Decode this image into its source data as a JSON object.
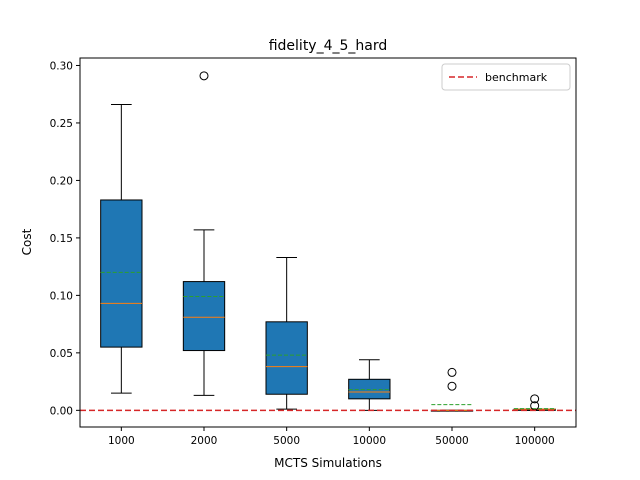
{
  "chart_data": {
    "type": "box",
    "title": "fidelity_4_5_hard",
    "xlabel": "MCTS Simulations",
    "ylabel": "Cost",
    "categories": [
      "1000",
      "2000",
      "5000",
      "10000",
      "50000",
      "100000"
    ],
    "ylim": [
      -0.0145,
      0.3065
    ],
    "yticks": [
      0.0,
      0.05,
      0.1,
      0.15,
      0.2,
      0.25,
      0.3
    ],
    "ytick_labels": [
      "0.00",
      "0.05",
      "0.10",
      "0.15",
      "0.20",
      "0.25",
      "0.30"
    ],
    "grid": false,
    "legend": {
      "position": "top-right",
      "entries": [
        "benchmark"
      ]
    },
    "benchmark": 0.0,
    "boxes": [
      {
        "category": "1000",
        "whisker_low": 0.015,
        "q1": 0.055,
        "median": 0.093,
        "mean": 0.12,
        "q3": 0.183,
        "whisker_high": 0.266,
        "outliers": []
      },
      {
        "category": "2000",
        "whisker_low": 0.013,
        "q1": 0.052,
        "median": 0.081,
        "mean": 0.099,
        "q3": 0.112,
        "whisker_high": 0.157,
        "outliers": [
          0.291
        ]
      },
      {
        "category": "5000",
        "whisker_low": 0.001,
        "q1": 0.014,
        "median": 0.038,
        "mean": 0.048,
        "q3": 0.077,
        "whisker_high": 0.133,
        "outliers": []
      },
      {
        "category": "10000",
        "whisker_low": 0.0,
        "q1": 0.01,
        "median": 0.016,
        "mean": 0.018,
        "q3": 0.027,
        "whisker_high": 0.044,
        "outliers": []
      },
      {
        "category": "50000",
        "whisker_low": 0.0,
        "q1": 0.0,
        "median": 0.0,
        "mean": 0.005,
        "q3": 0.0,
        "whisker_high": 0.0,
        "outliers": [
          0.021,
          0.033
        ]
      },
      {
        "category": "100000",
        "whisker_low": 0.0,
        "q1": 0.0,
        "median": 0.001,
        "mean": 0.0015,
        "q3": 0.001,
        "whisker_high": 0.001,
        "outliers": [
          0.004,
          0.01
        ]
      }
    ],
    "colors": {
      "box_fill": "#1f77b4",
      "median": "#ff7f0e",
      "mean": "#2ca02c",
      "benchmark": "#d62728"
    }
  }
}
